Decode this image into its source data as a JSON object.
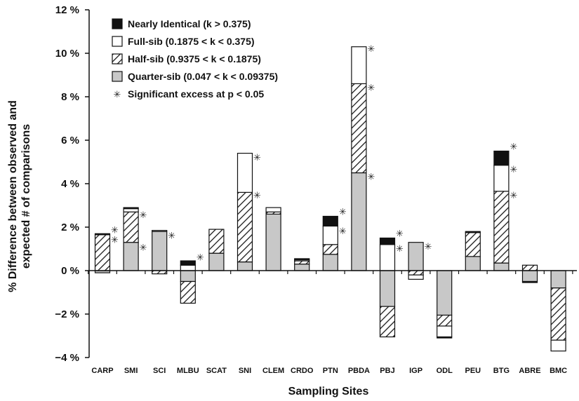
{
  "chart_data": {
    "type": "bar",
    "stacked": true,
    "xlabel": "Sampling Sites",
    "ylabel_line1": "% Difference between observed and",
    "ylabel_line2": "expected # of comparisons",
    "ylim": [
      -4,
      12
    ],
    "yticks": [
      -4,
      -2,
      0,
      2,
      4,
      6,
      8,
      10,
      12
    ],
    "ytick_labels": [
      "−4 %",
      "−2 %",
      "0 %",
      "2 %",
      "4 %",
      "6 %",
      "8 %",
      "10 %",
      "12 %"
    ],
    "categories": [
      "CARP",
      "SMI",
      "SCI",
      "MLBU",
      "SCAT",
      "SNI",
      "CLEM",
      "CRDO",
      "PTN",
      "PBDA",
      "PBJ",
      "IGP",
      "ODL",
      "PEU",
      "BTG",
      "ABRE",
      "BMC"
    ],
    "series": [
      {
        "name": "Quarter-sib (0.047 < k < 0.09375)",
        "pattern": "gray",
        "values": [
          -0.1,
          1.3,
          1.8,
          -0.5,
          0.8,
          0.4,
          2.6,
          0.3,
          0.75,
          4.5,
          -1.65,
          1.3,
          -2.05,
          0.65,
          0.35,
          -0.5,
          -0.8
        ]
      },
      {
        "name": "Half-sib (0.9375 < k < 0.1875)",
        "pattern": "hatch",
        "values": [
          1.65,
          1.4,
          -0.15,
          -1.0,
          1.1,
          3.2,
          0.1,
          0.15,
          0.45,
          4.1,
          -1.4,
          -0.2,
          -0.5,
          1.1,
          3.3,
          0.25,
          -2.4
        ]
      },
      {
        "name": "Full-sib (0.1875 < k < 0.375)",
        "pattern": "white",
        "values": [
          0.0,
          0.15,
          0.05,
          0.25,
          0.0,
          1.8,
          0.2,
          0.05,
          0.85,
          1.7,
          1.2,
          -0.2,
          -0.5,
          0.0,
          1.2,
          0.0,
          -0.5
        ]
      },
      {
        "name": "Nearly Identical (k > 0.375)",
        "pattern": "black",
        "values": [
          0.05,
          0.05,
          0.0,
          0.2,
          0.0,
          0.0,
          0.0,
          0.05,
          0.45,
          0.0,
          0.3,
          0.0,
          -0.05,
          0.05,
          0.65,
          -0.05,
          0.0
        ]
      }
    ],
    "significance_label": "Significant excess at p < 0.05",
    "significance": [
      {
        "category": "CARP",
        "y": 1.85
      },
      {
        "category": "CARP",
        "y": 1.4
      },
      {
        "category": "SMI",
        "y": 2.55
      },
      {
        "category": "SMI",
        "y": 1.05
      },
      {
        "category": "SCI",
        "y": 1.6
      },
      {
        "category": "MLBU",
        "y": 0.6
      },
      {
        "category": "SNI",
        "y": 5.2
      },
      {
        "category": "SNI",
        "y": 3.45
      },
      {
        "category": "PTN",
        "y": 2.7
      },
      {
        "category": "PTN",
        "y": 1.8
      },
      {
        "category": "PBDA",
        "y": 10.2
      },
      {
        "category": "PBDA",
        "y": 8.4
      },
      {
        "category": "PBDA",
        "y": 4.3
      },
      {
        "category": "PBJ",
        "y": 1.7
      },
      {
        "category": "PBJ",
        "y": 1.0
      },
      {
        "category": "IGP",
        "y": 1.1
      },
      {
        "category": "BTG",
        "y": 5.7
      },
      {
        "category": "BTG",
        "y": 4.65
      },
      {
        "category": "BTG",
        "y": 3.45
      }
    ],
    "legend_position": "top-left",
    "legend_order": [
      3,
      2,
      1,
      0
    ]
  }
}
